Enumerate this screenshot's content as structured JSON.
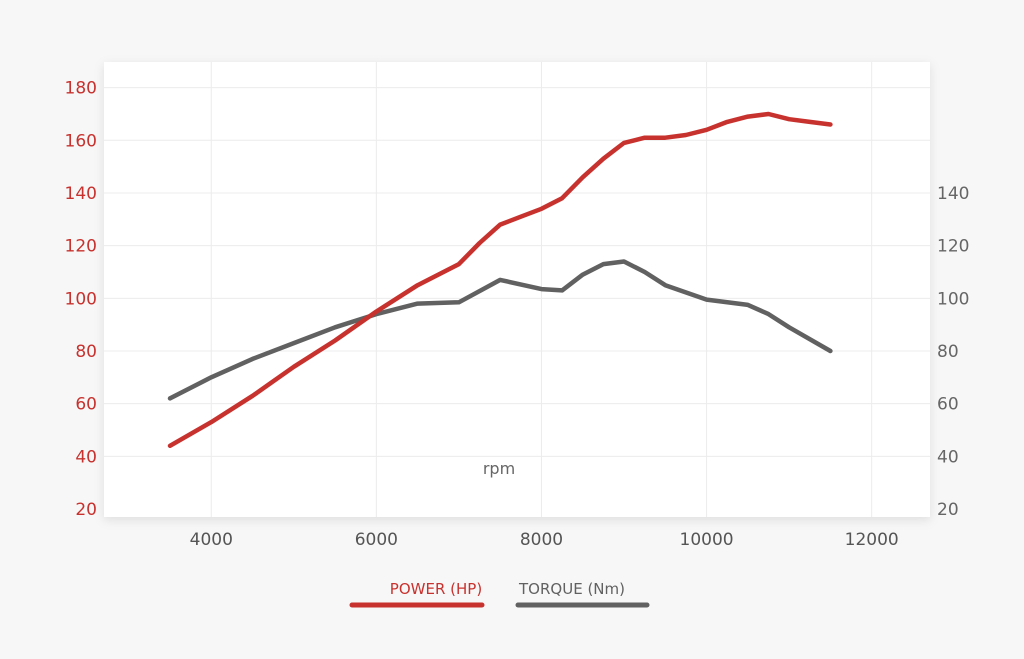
{
  "chart_data": {
    "type": "line",
    "xlabel": "rpm",
    "x_ticks": [
      "4000",
      "6000",
      "8000",
      "10000",
      "12000"
    ],
    "xlim": [
      3000,
      12500
    ],
    "y_left": {
      "ticks": [
        "20",
        "40",
        "60",
        "80",
        "100",
        "120",
        "140",
        "160",
        "180"
      ],
      "lim": [
        20,
        180
      ],
      "color": "#c8322e"
    },
    "y_right": {
      "ticks": [
        "20",
        "40",
        "60",
        "80",
        "100",
        "120",
        "140"
      ],
      "lim": [
        20,
        180
      ],
      "color": "#666666"
    },
    "grid": true,
    "legend_position": "bottom-center",
    "series": [
      {
        "name": "POWER (HP)",
        "axis": "left",
        "color": "#c8322e",
        "x": [
          3500,
          4000,
          4500,
          5000,
          5500,
          6000,
          6500,
          7000,
          7250,
          7500,
          7750,
          8000,
          8250,
          8500,
          8750,
          9000,
          9250,
          9500,
          9750,
          10000,
          10250,
          10500,
          10750,
          11000,
          11250,
          11500
        ],
        "y": [
          44,
          53,
          63,
          74,
          84,
          95,
          105,
          113,
          121,
          128,
          131,
          134,
          138,
          146,
          153,
          159,
          161,
          161,
          162,
          164,
          167,
          169,
          170,
          168,
          167,
          166
        ]
      },
      {
        "name": "TORQUE (Nm)",
        "axis": "right",
        "color": "#616161",
        "x": [
          3500,
          4000,
          4500,
          5000,
          5500,
          6000,
          6500,
          7000,
          7500,
          8000,
          8250,
          8500,
          8750,
          9000,
          9250,
          9500,
          10000,
          10500,
          10750,
          11000,
          11500
        ],
        "y": [
          62,
          70,
          77,
          83,
          89,
          94,
          98,
          98.5,
          107,
          103.5,
          103,
          109,
          113,
          114,
          110,
          105,
          99.5,
          97.5,
          94,
          89,
          80
        ]
      }
    ]
  }
}
